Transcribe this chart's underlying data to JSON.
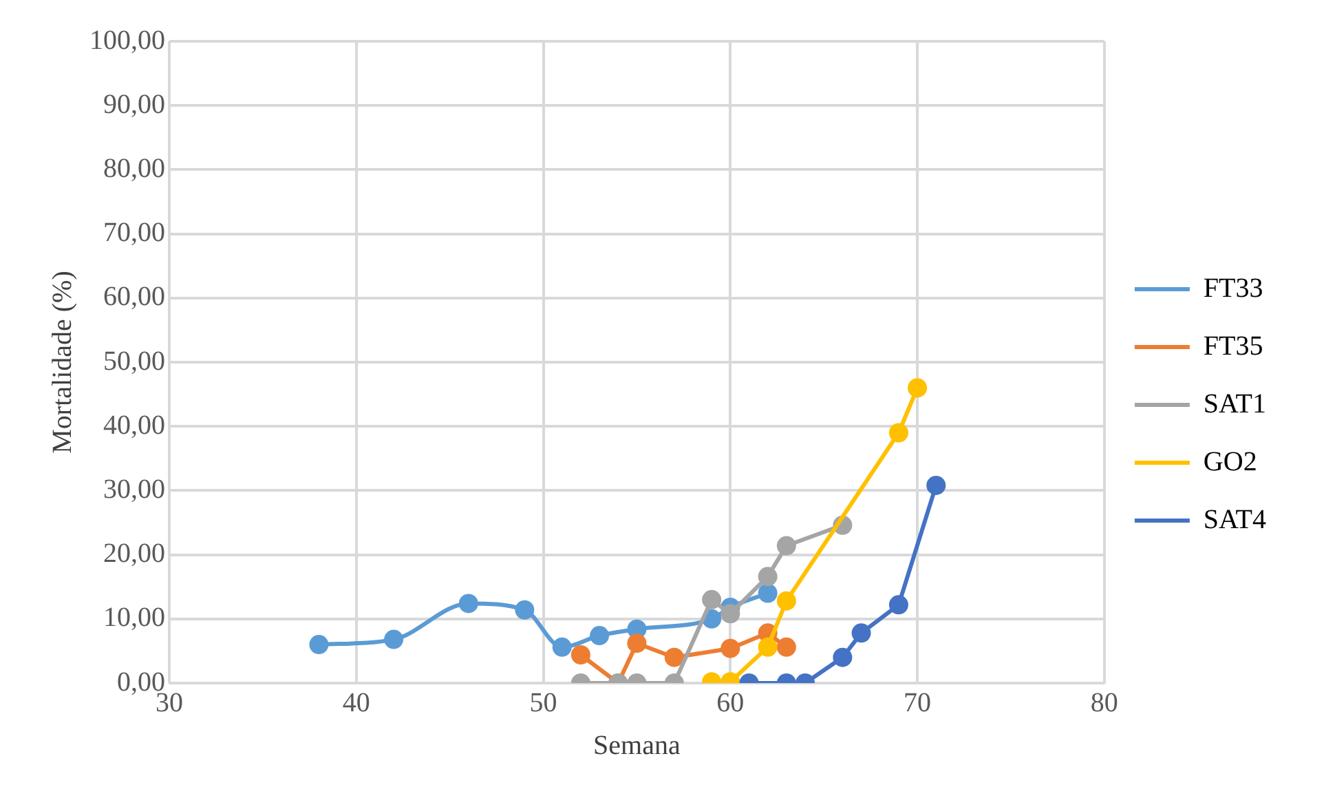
{
  "chart_data": {
    "type": "line",
    "xlabel": "Semana",
    "ylabel": "Mortalidade (%)",
    "xlim": [
      30,
      80
    ],
    "xticks": [
      30,
      40,
      50,
      60,
      70,
      80
    ],
    "ylim": [
      0,
      100
    ],
    "yticks": [
      {
        "value": 0,
        "label": "0,00"
      },
      {
        "value": 10,
        "label": "10,00"
      },
      {
        "value": 20,
        "label": "20,00"
      },
      {
        "value": 30,
        "label": "30,00"
      },
      {
        "value": 40,
        "label": "40,00"
      },
      {
        "value": 50,
        "label": "50,00"
      },
      {
        "value": 60,
        "label": "60,00"
      },
      {
        "value": 70,
        "label": "70,00"
      },
      {
        "value": 80,
        "label": "80,00"
      },
      {
        "value": 90,
        "label": "90,00"
      },
      {
        "value": 100,
        "label": "100,00"
      }
    ],
    "grid": true,
    "legend": "right",
    "marker": "circle",
    "series": [
      {
        "name": "FT33",
        "color": "#5b9bd5",
        "x": [
          38,
          42,
          46,
          49,
          51,
          53,
          55,
          59,
          60,
          62
        ],
        "values": [
          6.0,
          6.8,
          12.4,
          11.4,
          5.6,
          7.4,
          8.4,
          10.0,
          11.8,
          14.0
        ]
      },
      {
        "name": "FT35",
        "color": "#ed7d31",
        "x": [
          52,
          54,
          55,
          57,
          60,
          62,
          63
        ],
        "values": [
          4.4,
          0,
          6.2,
          4.0,
          5.4,
          7.8,
          5.6
        ]
      },
      {
        "name": "SAT1",
        "color": "#a5a5a5",
        "x": [
          52,
          54,
          55,
          57,
          59,
          60,
          62,
          63,
          66
        ],
        "values": [
          0,
          0,
          0,
          0,
          13.0,
          10.8,
          16.6,
          21.4,
          24.6
        ]
      },
      {
        "name": "GO2",
        "color": "#ffc000",
        "x": [
          59,
          60,
          62,
          63,
          69,
          70
        ],
        "values": [
          0.2,
          0.2,
          5.6,
          12.8,
          39.0,
          46.0
        ]
      },
      {
        "name": "SAT4",
        "color": "#4472c4",
        "x": [
          61,
          63,
          64,
          66,
          67,
          69,
          71
        ],
        "values": [
          0,
          0,
          0,
          4.0,
          7.8,
          12.2,
          30.8
        ]
      }
    ]
  }
}
